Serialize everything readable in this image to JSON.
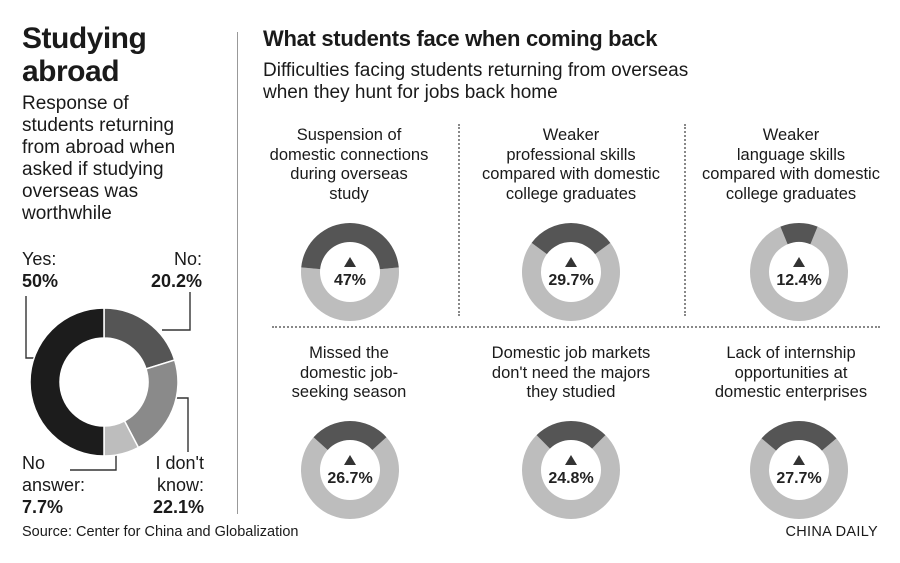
{
  "left": {
    "title": "Studying\nabroad",
    "description": "Response of\nstudents returning\nfrom abroad when\nasked if studying\noverseas was\nworthwhile"
  },
  "right": {
    "title": "What students face when coming back",
    "subtitle": "Difficulties facing students returning from overseas\nwhen they hunt for jobs back home"
  },
  "source": "Source: Center for China and Globalization",
  "credit": "CHINA DAILY",
  "colors": {
    "dark": "#1c1c1c",
    "mid": "#555555",
    "light": "#bdbdbd",
    "gray": "#8a8a8a"
  },
  "chart_data": [
    {
      "type": "pie",
      "style": "donut",
      "title": "Response of students returning from abroad when asked if studying overseas was worthwhile",
      "slices": [
        {
          "label": "Yes:",
          "value_label": "50%",
          "value": 50
        },
        {
          "label": "No:",
          "value_label": "20.2%",
          "value": 20.2
        },
        {
          "label": "I don't\nknow:",
          "value_label": "22.1%",
          "value": 22.1
        },
        {
          "label": "No\nanswer:",
          "value_label": "7.7%",
          "value": 7.7
        }
      ]
    },
    {
      "type": "pie",
      "style": "donut-grid",
      "title": "Difficulties facing students returning from overseas when they hunt for jobs back home",
      "items": [
        {
          "label": "Suspension of\ndomestic connections\nduring overseas\nstudy",
          "value": 47,
          "value_label": "47%"
        },
        {
          "label": "Weaker\nprofessional skills\ncompared with domestic\ncollege graduates",
          "value": 29.7,
          "value_label": "29.7%"
        },
        {
          "label": "Weaker\nlanguage skills\ncompared with domestic\ncollege graduates",
          "value": 12.4,
          "value_label": "12.4%"
        },
        {
          "label": "Missed the\ndomestic job-\nseeking season",
          "value": 26.7,
          "value_label": "26.7%"
        },
        {
          "label": "Domestic job markets\ndon't need the majors\nthey studied",
          "value": 24.8,
          "value_label": "24.8%"
        },
        {
          "label": "Lack of internship\nopportunities at\ndomestic enterprises",
          "value": 27.7,
          "value_label": "27.7%"
        }
      ]
    }
  ]
}
